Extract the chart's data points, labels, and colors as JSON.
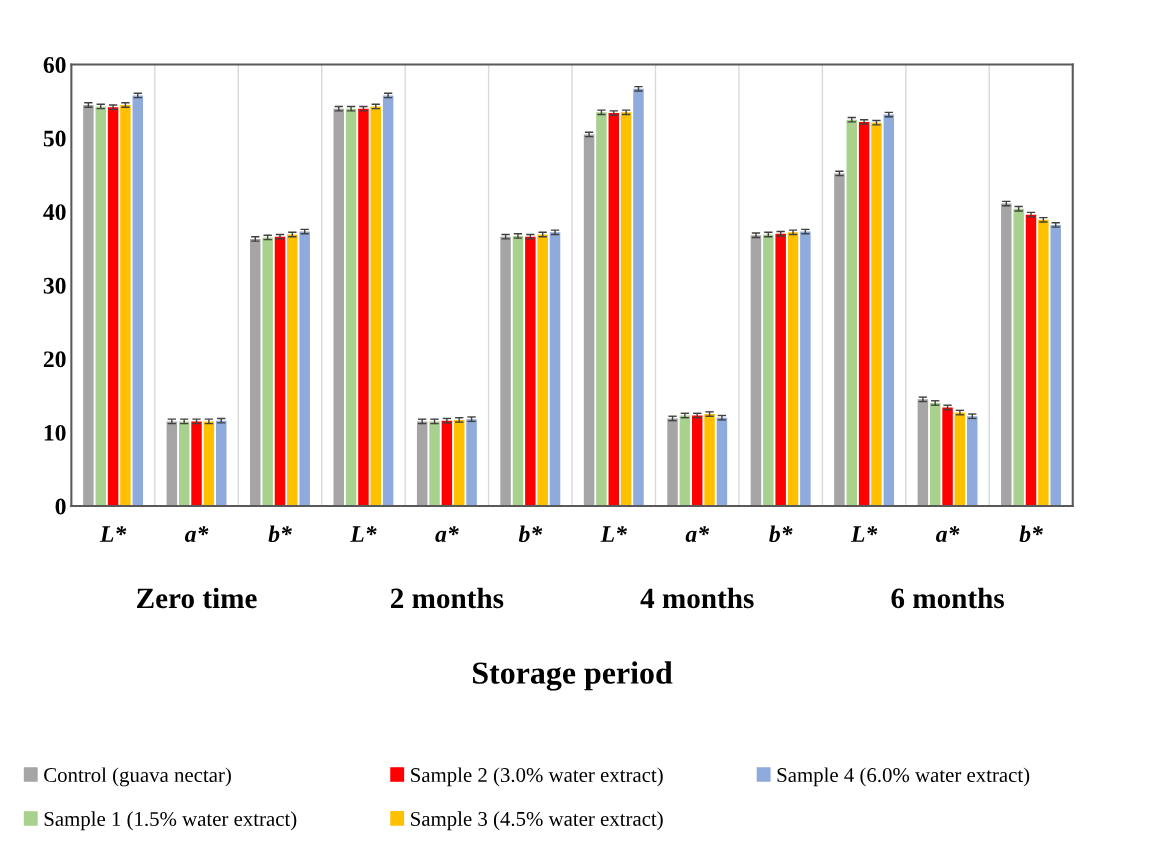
{
  "chart_data": {
    "type": "bar",
    "xlabel": "Storage period",
    "categories": [
      "L*",
      "a*",
      "b*",
      "L*",
      "a*",
      "b*",
      "L*",
      "a*",
      "b*",
      "L*",
      "a*",
      "b*"
    ],
    "annotations": [
      "Zero time",
      "2 months",
      "4 months",
      "6 months"
    ],
    "series": [
      {
        "name": "Control (guava nectar)",
        "color": "#a5a5a5",
        "values": [
          54.5,
          11.5,
          36.3,
          54.0,
          11.5,
          36.6,
          50.5,
          11.9,
          36.8,
          45.2,
          14.5,
          41.1
        ],
        "errors": [
          0.3,
          0.3,
          0.3,
          0.3,
          0.3,
          0.3,
          0.3,
          0.3,
          0.3,
          0.3,
          0.3,
          0.3
        ]
      },
      {
        "name": "Sample 1 (1.5% water extract)",
        "color": "#a9d18e",
        "values": [
          54.3,
          11.5,
          36.5,
          54.0,
          11.5,
          36.7,
          53.5,
          12.3,
          36.9,
          52.5,
          14.0,
          40.4
        ],
        "errors": [
          0.3,
          0.3,
          0.3,
          0.3,
          0.3,
          0.3,
          0.3,
          0.3,
          0.3,
          0.3,
          0.3,
          0.3
        ]
      },
      {
        "name": "Sample 2 (3.0% water extract)",
        "color": "#ff0000",
        "values": [
          54.2,
          11.5,
          36.6,
          54.0,
          11.6,
          36.6,
          53.4,
          12.3,
          37.0,
          52.2,
          13.4,
          39.6
        ],
        "errors": [
          0.3,
          0.3,
          0.3,
          0.3,
          0.3,
          0.3,
          0.3,
          0.3,
          0.3,
          0.3,
          0.3,
          0.3
        ]
      },
      {
        "name": "Sample 3 (4.5% water extract)",
        "color": "#ffc000",
        "values": [
          54.5,
          11.5,
          36.9,
          54.3,
          11.7,
          36.9,
          53.5,
          12.5,
          37.2,
          52.1,
          12.7,
          38.9
        ],
        "errors": [
          0.3,
          0.3,
          0.3,
          0.3,
          0.3,
          0.3,
          0.3,
          0.3,
          0.3,
          0.3,
          0.3,
          0.3
        ]
      },
      {
        "name": "Sample 4 (6.0% water extract)",
        "color": "#8faadc",
        "values": [
          55.8,
          11.6,
          37.3,
          55.8,
          11.8,
          37.2,
          56.7,
          12.0,
          37.3,
          53.2,
          12.2,
          38.2
        ],
        "errors": [
          0.3,
          0.3,
          0.3,
          0.3,
          0.3,
          0.3,
          0.3,
          0.3,
          0.3,
          0.3,
          0.3,
          0.3
        ]
      }
    ],
    "ylim": [
      0,
      60
    ],
    "yticks": [
      0,
      10,
      20,
      30,
      40,
      50,
      60
    ],
    "grid": "x",
    "legend": "bottom"
  }
}
